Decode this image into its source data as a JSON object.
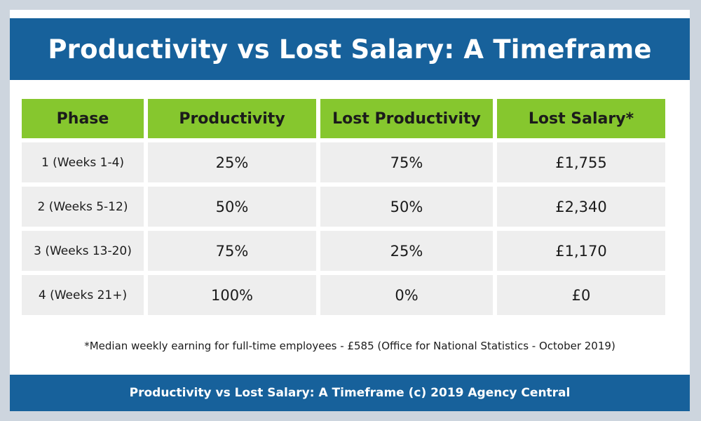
{
  "header": {
    "title": "Productivity vs Lost Salary: A Timeframe"
  },
  "colors": {
    "header_bg": "#17619b",
    "column_header_bg": "#86c72e",
    "cell_bg": "#eeeeee",
    "page_bg": "#cdd5de"
  },
  "chart_data": {
    "type": "table",
    "title": "Productivity vs Lost Salary: A Timeframe",
    "columns": [
      "Phase",
      "Productivity",
      "Lost Productivity",
      "Lost Salary*"
    ],
    "rows": [
      [
        "1 (Weeks 1-4)",
        "25%",
        "75%",
        "£1,755"
      ],
      [
        "2 (Weeks 5-12)",
        "50%",
        "50%",
        "£2,340"
      ],
      [
        "3 (Weeks 13-20)",
        "75%",
        "25%",
        "£1,170"
      ],
      [
        "4 (Weeks 21+)",
        "100%",
        "0%",
        "£0"
      ]
    ]
  },
  "footnote": "*Median weekly earning for full-time employees - £585 (Office for National Statistics - October 2019)",
  "footer": {
    "text": "Productivity vs Lost Salary: A Timeframe (c) 2019 Agency Central"
  }
}
